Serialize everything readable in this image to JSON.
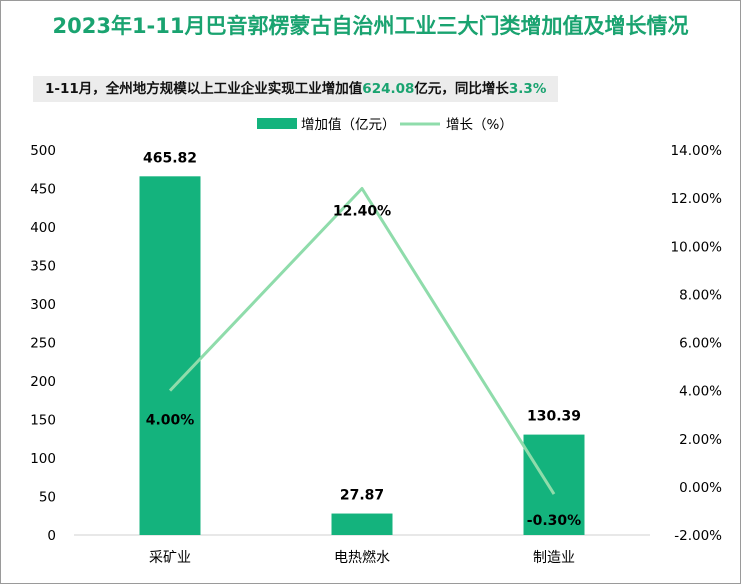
{
  "title": "2023年1-11月巴音郭楞蒙古自治州工业三大门类增加值及增长情况",
  "subtitle": {
    "prefix": "1-11月，全州地方规模以上工业企业实现工业增加值",
    "value1": "624.08",
    "mid": "亿元，同比增长",
    "value2": "3.3%"
  },
  "colors": {
    "bar": "#14b37d",
    "line": "#8fdcab",
    "title": "#1aa370"
  },
  "chart_data": {
    "type": "bar",
    "categories": [
      "采矿业",
      "电热燃水",
      "制造业"
    ],
    "series": [
      {
        "name": "增加值（亿元）",
        "type": "bar",
        "axis": "left",
        "values": [
          465.82,
          27.87,
          130.39
        ],
        "labels": [
          "465.82",
          "27.87",
          "130.39"
        ]
      },
      {
        "name": "增长（%）",
        "type": "line",
        "axis": "right",
        "values": [
          4.0,
          12.4,
          -0.3
        ],
        "labels": [
          "4.00%",
          "12.40%",
          "-0.30%"
        ]
      }
    ],
    "y_left": {
      "range": [
        0,
        500
      ],
      "ticks": [
        "0",
        "50",
        "100",
        "150",
        "200",
        "250",
        "300",
        "350",
        "400",
        "450",
        "500"
      ]
    },
    "y_right": {
      "range": [
        -2,
        14
      ],
      "ticks": [
        "-2.00%",
        "0.00%",
        "2.00%",
        "4.00%",
        "6.00%",
        "8.00%",
        "10.00%",
        "12.00%",
        "14.00%"
      ]
    },
    "grid": false,
    "legend_position": "top"
  }
}
